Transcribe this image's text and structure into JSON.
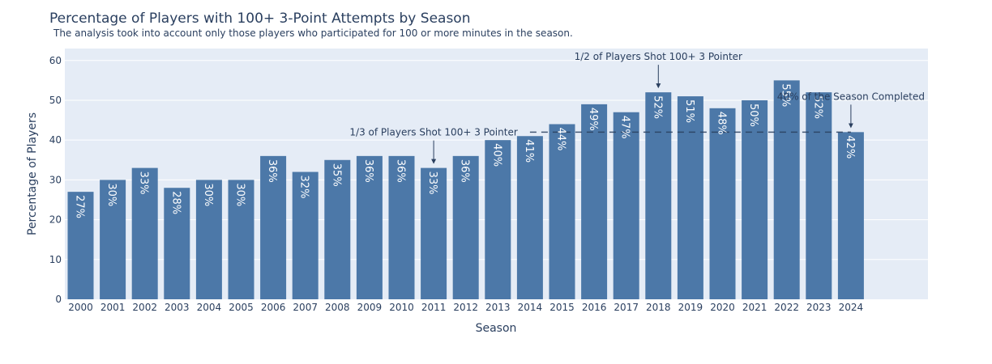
{
  "chart_data": {
    "type": "bar",
    "title": "Percentage of Players with 100+ 3-Point Attempts by Season",
    "subtitle": "The analysis took into account only those players who participated for 100 or more minutes in the season.",
    "xlabel": "Season",
    "ylabel": "Percentage of Players",
    "categories": [
      "2000",
      "2001",
      "2002",
      "2003",
      "2004",
      "2005",
      "2006",
      "2007",
      "2008",
      "2009",
      "2010",
      "2011",
      "2012",
      "2013",
      "2014",
      "2015",
      "2016",
      "2017",
      "2018",
      "2019",
      "2020",
      "2021",
      "2022",
      "2023",
      "2024"
    ],
    "values": [
      27,
      30,
      33,
      28,
      30,
      30,
      36,
      32,
      35,
      36,
      36,
      33,
      36,
      40,
      41,
      44,
      49,
      47,
      52,
      51,
      48,
      50,
      55,
      52,
      42
    ],
    "data_labels": [
      "27%",
      "30%",
      "33%",
      "28%",
      "30%",
      "30%",
      "36%",
      "32%",
      "35%",
      "36%",
      "36%",
      "33%",
      "36%",
      "40%",
      "41%",
      "44%",
      "49%",
      "47%",
      "52%",
      "51%",
      "48%",
      "50%",
      "55%",
      "52%",
      "42%"
    ],
    "y_ticks": [
      "0",
      "10",
      "20",
      "30",
      "40",
      "50",
      "60"
    ],
    "ylim": [
      0,
      63
    ],
    "grid": true,
    "bar_color": "#4c78a8",
    "plot_background": "#e5ecf6",
    "reference_line": {
      "y": 42,
      "from": "2014",
      "to": "2024",
      "style": "dashed"
    },
    "annotations": [
      {
        "text": "1/3 of Players Shot 100+ 3 Pointer",
        "x": "2011",
        "y": 33
      },
      {
        "text": "1/2 of Players Shot 100+ 3 Pointer",
        "x": "2018",
        "y": 52
      },
      {
        "text": "40% of the Season Completed",
        "x": "2024",
        "y": 42
      }
    ]
  }
}
